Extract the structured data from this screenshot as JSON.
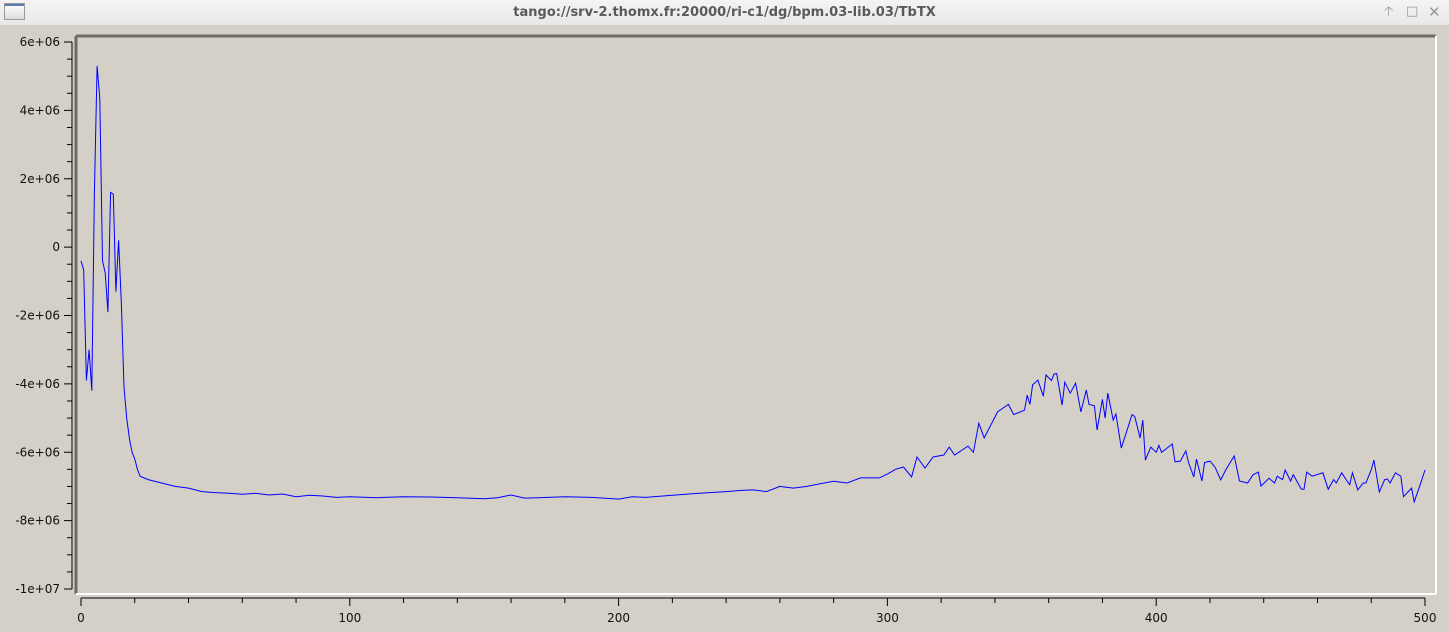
{
  "window": {
    "title": "tango://srv-2.thomx.fr:20000/ri-c1/dg/bpm.03-lib.03/TbTX",
    "icons": [
      "app-window-icon",
      "keep-above-icon",
      "maximize-icon",
      "close-icon"
    ]
  },
  "chart_data": {
    "type": "line",
    "title": "",
    "xlabel": "",
    "ylabel": "",
    "xlim": [
      0,
      500
    ],
    "ylim": [
      -10000000,
      6000000
    ],
    "grid": true,
    "x_ticks": [
      0,
      100,
      200,
      300,
      400,
      500
    ],
    "x_tick_labels": [
      "0",
      "100",
      "200",
      "300",
      "400",
      "500"
    ],
    "y_ticks": [
      6000000,
      4000000,
      2000000,
      0,
      -2000000,
      -4000000,
      -6000000,
      -8000000,
      -10000000
    ],
    "y_tick_labels": [
      "6e+06",
      "4e+06",
      "2e+06",
      "0",
      "-2e+06",
      "-4e+06",
      "-6e+06",
      "-8e+06",
      "-1e+07"
    ],
    "colors": {
      "line": "#0000ff",
      "background": "#d4d0c8",
      "grid": "#a0a0a0"
    },
    "series": [
      {
        "x": [
          0,
          1,
          2,
          3,
          4,
          5,
          6,
          7,
          8,
          9,
          10,
          11,
          12,
          13,
          14,
          15,
          16,
          17,
          18,
          19,
          20,
          21,
          22,
          25,
          30,
          35,
          40,
          45,
          50,
          55,
          60,
          65,
          70,
          75,
          80,
          85,
          90,
          95,
          100,
          110,
          120,
          130,
          140,
          150,
          155,
          160,
          165,
          170,
          180,
          190,
          200,
          205,
          210,
          220,
          230,
          240,
          245,
          250,
          255,
          260,
          265,
          270,
          275,
          280,
          285,
          290,
          297,
          300,
          303,
          306,
          309,
          311,
          314,
          317,
          321,
          323,
          325,
          330,
          332,
          334,
          336,
          341,
          345,
          347,
          351,
          352,
          353,
          354,
          356,
          358,
          359,
          361,
          362,
          363,
          365,
          366,
          368,
          370,
          372,
          374,
          375,
          377,
          378,
          380,
          381,
          382,
          384,
          385,
          387,
          389,
          391,
          392,
          394,
          395,
          396,
          398,
          400,
          401,
          402,
          406,
          407,
          409,
          411,
          412,
          414,
          415,
          417,
          418,
          420,
          422,
          424,
          426,
          429,
          431,
          434,
          436,
          438,
          439,
          442,
          444,
          445,
          447,
          448,
          450,
          451,
          454,
          455,
          456,
          458,
          462,
          464,
          466,
          467,
          469,
          471,
          472,
          473,
          475,
          477,
          478,
          480,
          481,
          483,
          485,
          486,
          487,
          489,
          491,
          492,
          495,
          496,
          498,
          500
        ],
        "y": [
          -400000,
          -670000,
          -3900000,
          -3000000,
          -4200000,
          1600000,
          5300000,
          4350000,
          -400000,
          -750000,
          -1900000,
          1600000,
          1550000,
          -1300000,
          200000,
          -1600000,
          -4100000,
          -5000000,
          -5600000,
          -6000000,
          -6200000,
          -6500000,
          -6700000,
          -6800000,
          -6900000,
          -7000000,
          -7050000,
          -7150000,
          -7180000,
          -7200000,
          -7230000,
          -7200000,
          -7250000,
          -7220000,
          -7300000,
          -7260000,
          -7280000,
          -7320000,
          -7300000,
          -7330000,
          -7300000,
          -7310000,
          -7330000,
          -7360000,
          -7330000,
          -7250000,
          -7340000,
          -7330000,
          -7300000,
          -7320000,
          -7370000,
          -7300000,
          -7320000,
          -7260000,
          -7200000,
          -7150000,
          -7120000,
          -7100000,
          -7150000,
          -7000000,
          -7050000,
          -7000000,
          -6920000,
          -6850000,
          -6900000,
          -6750000,
          -6750000,
          -6640000,
          -6500000,
          -6430000,
          -6720000,
          -6140000,
          -6460000,
          -6140000,
          -6080000,
          -5850000,
          -6080000,
          -5820000,
          -6000000,
          -5150000,
          -5580000,
          -4820000,
          -4600000,
          -4900000,
          -4770000,
          -4330000,
          -4600000,
          -4030000,
          -3890000,
          -4360000,
          -3740000,
          -3900000,
          -3710000,
          -3700000,
          -4620000,
          -3950000,
          -4270000,
          -3980000,
          -4820000,
          -4180000,
          -4600000,
          -4640000,
          -5350000,
          -4450000,
          -5000000,
          -4270000,
          -5060000,
          -4880000,
          -5880000,
          -5400000,
          -4900000,
          -4950000,
          -5580000,
          -5060000,
          -6230000,
          -5850000,
          -6000000,
          -5800000,
          -6000000,
          -5760000,
          -6280000,
          -6260000,
          -5960000,
          -6300000,
          -6720000,
          -6200000,
          -6840000,
          -6300000,
          -6260000,
          -6450000,
          -6810000,
          -6500000,
          -6110000,
          -6840000,
          -6900000,
          -6660000,
          -6580000,
          -6990000,
          -6760000,
          -6900000,
          -6700000,
          -6800000,
          -6520000,
          -6840000,
          -6660000,
          -7080000,
          -7080000,
          -6580000,
          -6700000,
          -6600000,
          -7080000,
          -6800000,
          -6900000,
          -6600000,
          -6840000,
          -6950000,
          -6600000,
          -7100000,
          -6900000,
          -6900000,
          -6520000,
          -6230000,
          -7160000,
          -6800000,
          -6780000,
          -6900000,
          -6600000,
          -6700000,
          -7300000,
          -7050000,
          -7450000,
          -7000000,
          -6520000
        ]
      }
    ]
  }
}
